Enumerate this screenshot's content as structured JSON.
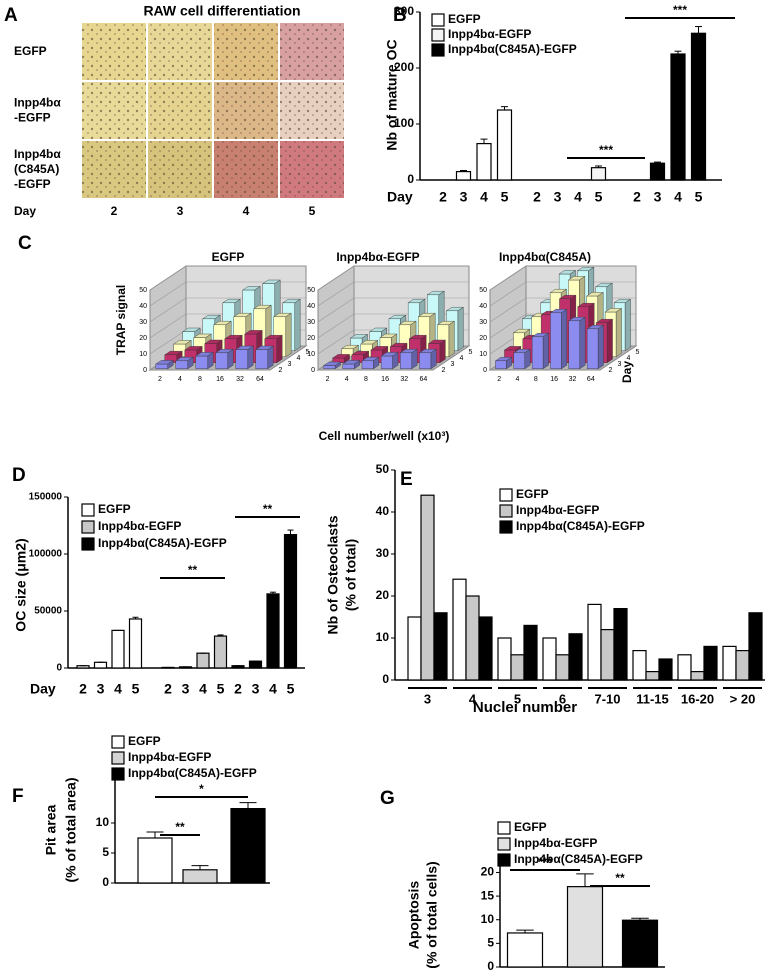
{
  "panel_a": {
    "letter": "A",
    "title": "RAW cell differentiation",
    "rows": [
      [
        "EGFP"
      ],
      [
        "Inpp4bα",
        "-EGFP"
      ],
      [
        "Inpp4bα",
        "(C845A)",
        "-EGFP"
      ]
    ],
    "xlabel": "Day",
    "days": [
      "2",
      "3",
      "4",
      "5"
    ]
  },
  "panel_c": {
    "letter": "C",
    "ylabel": "TRAP signal",
    "xlabel": "Cell number/well (x10³)",
    "legend_title": "Day"
  },
  "chart_data": [
    {
      "panel": "B",
      "type": "grouped_bar",
      "ylabel": "Nb of mature OC",
      "xlabel": "Day",
      "categories": [
        "2",
        "3",
        "4",
        "5"
      ],
      "series": [
        {
          "name": "EGFP",
          "color": "#ffffff",
          "values": [
            0,
            15,
            65,
            125
          ],
          "errors": [
            0,
            2,
            8,
            6
          ]
        },
        {
          "name": "Inpp4bα-EGFP",
          "color": "#f4f4f4",
          "values": [
            0,
            0,
            0,
            22
          ],
          "errors": [
            0,
            0,
            0,
            3
          ]
        },
        {
          "name": "Inpp4bα(C845A)-EGFP",
          "color": "#000000",
          "values": [
            0,
            30,
            225,
            262
          ],
          "errors": [
            0,
            2,
            5,
            12
          ]
        }
      ],
      "ylim": [
        0,
        300
      ],
      "yticks": [
        0,
        100,
        200,
        300
      ],
      "significance": [
        "***",
        "***"
      ]
    },
    {
      "type": "bar3d",
      "title": [
        "EGFP"
      ],
      "categories": [
        "2",
        "4",
        "8",
        "16",
        "32",
        "64"
      ],
      "series": [
        {
          "name": "2",
          "color": "#8c8cf0",
          "values": [
            3,
            5,
            8,
            10,
            12,
            12
          ]
        },
        {
          "name": "3",
          "color": "#c0306a",
          "values": [
            5,
            8,
            12,
            15,
            18,
            15
          ]
        },
        {
          "name": "4",
          "color": "#ffffc0",
          "values": [
            8,
            12,
            20,
            25,
            30,
            25
          ]
        },
        {
          "name": "5",
          "color": "#c8f8f8",
          "values": [
            12,
            20,
            30,
            38,
            42,
            30
          ]
        }
      ],
      "ylim": [
        0,
        50
      ],
      "yticks": [
        0,
        10,
        20,
        30,
        40,
        50
      ]
    },
    {
      "type": "bar3d",
      "title": [
        "Inpp4bα-EGFP"
      ],
      "categories": [
        "2",
        "4",
        "8",
        "16",
        "32",
        "64"
      ],
      "series": [
        {
          "name": "2",
          "color": "#8c8cf0",
          "values": [
            2,
            3,
            5,
            8,
            10,
            10
          ]
        },
        {
          "name": "3",
          "color": "#c0306a",
          "values": [
            3,
            5,
            8,
            10,
            15,
            12
          ]
        },
        {
          "name": "4",
          "color": "#ffffc0",
          "values": [
            5,
            8,
            12,
            20,
            25,
            20
          ]
        },
        {
          "name": "5",
          "color": "#c8f8f8",
          "values": [
            8,
            12,
            20,
            30,
            35,
            25
          ]
        }
      ],
      "ylim": [
        0,
        50
      ],
      "yticks": [
        0,
        10,
        20,
        30,
        40,
        50
      ]
    },
    {
      "type": "bar3d",
      "title": [
        "Inpp4bα(C845A)",
        "-EGFP"
      ],
      "categories": [
        "2",
        "4",
        "8",
        "16",
        "32",
        "64"
      ],
      "series": [
        {
          "name": "2",
          "color": "#8c8cf0",
          "values": [
            5,
            10,
            20,
            35,
            30,
            25
          ]
        },
        {
          "name": "3",
          "color": "#c0306a",
          "values": [
            8,
            15,
            30,
            40,
            35,
            25
          ]
        },
        {
          "name": "4",
          "color": "#ffffc0",
          "values": [
            15,
            25,
            40,
            48,
            38,
            28
          ]
        },
        {
          "name": "5",
          "color": "#c8f8f8",
          "values": [
            20,
            30,
            48,
            50,
            40,
            30
          ]
        }
      ],
      "ylim": [
        0,
        50
      ],
      "yticks": [
        0,
        10,
        20,
        30,
        40,
        50
      ]
    },
    {
      "panel": "D",
      "type": "grouped_bar",
      "ylabel": "OC size (μm2)",
      "xlabel": "Day",
      "categories": [
        "2",
        "3",
        "4",
        "5"
      ],
      "series": [
        {
          "name": "EGFP",
          "color": "#ffffff",
          "values": [
            2000,
            5000,
            33000,
            43000
          ],
          "errors": [
            0,
            0,
            0,
            1500
          ]
        },
        {
          "name": "Inpp4bα-EGFP",
          "color": "#c8c8c8",
          "values": [
            500,
            1000,
            13000,
            28000
          ],
          "errors": [
            0,
            0,
            0,
            1000
          ]
        },
        {
          "name": "Inpp4bα(C845A)-EGFP",
          "color": "#000000",
          "values": [
            2000,
            6000,
            65000,
            117000
          ],
          "errors": [
            0,
            0,
            1500,
            4000
          ]
        }
      ],
      "ylim": [
        0,
        150000
      ],
      "yticks": [
        0,
        50000,
        100000,
        150000
      ],
      "significance": [
        "**",
        "**"
      ]
    },
    {
      "panel": "E",
      "type": "bar",
      "ylabel": [
        "Nb of Osteoclasts",
        "(% of total)"
      ],
      "xlabel": "Nuclei number",
      "categories": [
        "3",
        "4",
        "5",
        "6",
        "7-10",
        "11-15",
        "16-20",
        "> 20"
      ],
      "series": [
        {
          "name": "EGFP",
          "color": "#ffffff",
          "values": [
            15,
            24,
            10,
            10,
            18,
            7,
            6,
            8
          ]
        },
        {
          "name": "Inpp4bα-EGFP",
          "color": "#c8c8c8",
          "values": [
            44,
            20,
            6,
            6,
            12,
            2,
            2,
            7
          ]
        },
        {
          "name": "Inpp4bα(C845A)-EGFP",
          "color": "#000000",
          "values": [
            16,
            15,
            13,
            11,
            17,
            5,
            8,
            16
          ]
        }
      ],
      "ylim": [
        0,
        50
      ],
      "yticks": [
        0,
        10,
        20,
        30,
        40,
        50
      ]
    },
    {
      "panel": "F",
      "type": "bar",
      "ylabel": [
        "Pit area",
        "(% of total area)"
      ],
      "series": [
        {
          "name": "EGFP",
          "color": "#ffffff",
          "values": [
            7.5
          ],
          "errors": [
            1.0
          ]
        },
        {
          "name": "Inpp4bα-EGFP",
          "color": "#d4d4d4",
          "values": [
            2.2
          ],
          "errors": [
            0.7
          ]
        },
        {
          "name": "Inpp4bα(C845A)-EGFP",
          "color": "#000000",
          "values": [
            12.4
          ],
          "errors": [
            1.0
          ]
        }
      ],
      "ylim": [
        0,
        17.5
      ],
      "yticks": [
        0,
        5,
        10
      ],
      "significance": [
        "*",
        "**"
      ]
    },
    {
      "panel": "G",
      "type": "bar",
      "ylabel": [
        "Apoptosis",
        "(% of total cells)"
      ],
      "series": [
        {
          "name": "EGFP",
          "color": "#ffffff",
          "values": [
            7.2
          ],
          "errors": [
            0.6
          ]
        },
        {
          "name": "Inpp4bα-EGFP",
          "color": "#e0e0e0",
          "values": [
            17
          ],
          "errors": [
            2.7
          ]
        },
        {
          "name": "Inpp4bα(C845A)-EGFP",
          "color": "#000000",
          "values": [
            9.9
          ],
          "errors": [
            0.4
          ]
        }
      ],
      "ylim": [
        0,
        22
      ],
      "yticks": [
        0,
        5,
        10,
        15,
        20
      ],
      "significance": [
        "***",
        "**"
      ]
    }
  ]
}
